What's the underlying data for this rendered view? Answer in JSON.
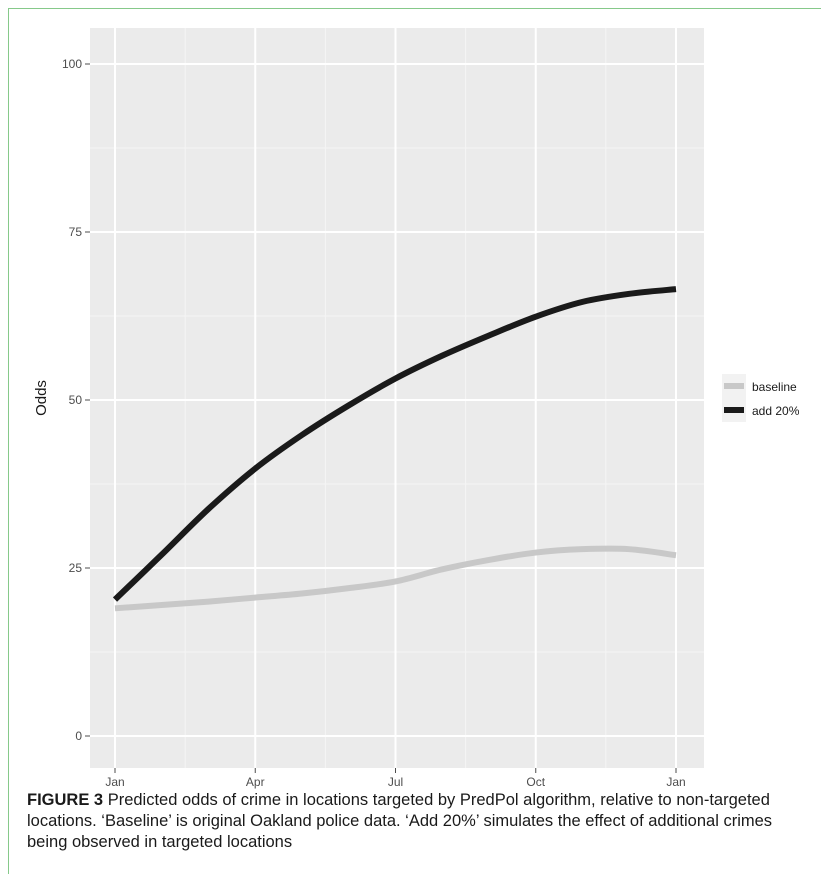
{
  "chart_data": {
    "type": "line",
    "title": "",
    "xlabel": "",
    "ylabel": "Odds",
    "x_ticks": [
      "Jan",
      "Apr",
      "Jul",
      "Oct",
      "Jan"
    ],
    "x_domain": [
      "Jan",
      "Jan (next year)"
    ],
    "y_ticks": [
      0,
      25,
      50,
      75,
      100
    ],
    "ylim": [
      0,
      100
    ],
    "grid": true,
    "legend_position": "right",
    "series": [
      {
        "name": "baseline",
        "color": "#c8c8c8",
        "x_month": [
          0,
          1,
          2,
          3,
          4,
          5,
          6,
          7,
          8,
          9,
          10,
          11,
          12
        ],
        "values": [
          19,
          19.5,
          20,
          20.6,
          21.2,
          22,
          23,
          24.8,
          26.2,
          27.3,
          27.8,
          27.8,
          26.9
        ]
      },
      {
        "name": "add 20%",
        "color": "#1a1a1a",
        "x_month": [
          0,
          1,
          2,
          3,
          4,
          5,
          6,
          7,
          8,
          9,
          10,
          11,
          12
        ],
        "values": [
          20.3,
          27,
          33.8,
          39.8,
          44.8,
          49.2,
          53.2,
          56.6,
          59.6,
          62.4,
          64.6,
          65.8,
          66.5
        ]
      }
    ]
  },
  "caption": {
    "label": "FIGURE 3",
    "text": " Predicted odds of crime in locations targeted by PredPol algorithm, relative to non-targeted locations. ‘Baseline’ is original Oakland police data. ‘Add 20%’ simulates the effect of additional crimes being observed in targeted locations"
  }
}
